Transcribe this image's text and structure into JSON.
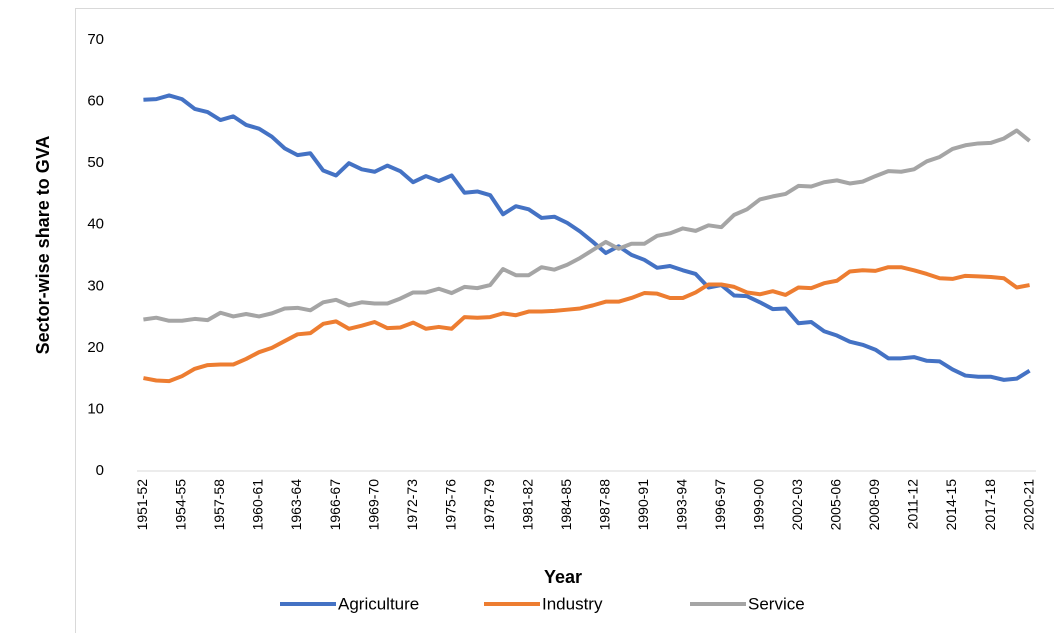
{
  "chart_data": {
    "type": "line",
    "x_label": "Year",
    "y_label": "Sector-wise share to GVA",
    "categories": [
      "1951-52",
      null,
      null,
      "1954-55",
      null,
      null,
      "1957-58",
      null,
      null,
      "1960-61",
      null,
      null,
      "1963-64",
      null,
      null,
      "1966-67",
      null,
      null,
      "1969-70",
      null,
      null,
      "1972-73",
      null,
      null,
      "1975-76",
      null,
      null,
      "1978-79",
      null,
      null,
      "1981-82",
      null,
      null,
      "1984-85",
      null,
      null,
      "1987-88",
      null,
      null,
      "1990-91",
      null,
      null,
      "1993-94",
      null,
      null,
      "1996-97",
      null,
      null,
      "1999-00",
      null,
      null,
      "2002-03",
      null,
      null,
      "2005-06",
      null,
      null,
      "2008-09",
      null,
      null,
      "2011-12",
      null,
      null,
      "2014-15",
      null,
      null,
      "2017-18",
      null,
      null,
      "2020-21"
    ],
    "series": [
      {
        "name": "Agriculture",
        "color": "#4472c4",
        "values": [
          60.3,
          60.4,
          61.0,
          60.4,
          58.8,
          58.3,
          57.0,
          57.6,
          56.2,
          55.6,
          54.3,
          52.4,
          51.3,
          51.6,
          48.8,
          48.0,
          50.0,
          49.0,
          48.6,
          49.6,
          48.7,
          46.9,
          47.9,
          47.1,
          48.0,
          45.2,
          45.4,
          44.8,
          41.7,
          43.0,
          42.5,
          41.1,
          41.3,
          40.3,
          38.9,
          37.2,
          35.4,
          36.5,
          35.1,
          34.3,
          33.0,
          33.3,
          32.6,
          32.0,
          29.8,
          30.2,
          28.5,
          28.4,
          27.4,
          26.3,
          26.4,
          24.0,
          24.2,
          22.7,
          22.0,
          21.0,
          20.5,
          19.7,
          18.3,
          18.3,
          18.5,
          17.9,
          17.8,
          16.5,
          15.5,
          15.3,
          15.3,
          14.8,
          15.0,
          16.3
        ]
      },
      {
        "name": "Industry",
        "color": "#ed7d31",
        "values": [
          15.1,
          14.7,
          14.6,
          15.4,
          16.6,
          17.2,
          17.3,
          17.3,
          18.2,
          19.3,
          20.0,
          21.1,
          22.2,
          22.4,
          23.9,
          24.3,
          23.1,
          23.6,
          24.2,
          23.2,
          23.3,
          24.1,
          23.1,
          23.4,
          23.1,
          25.0,
          24.9,
          25.0,
          25.6,
          25.3,
          25.9,
          25.9,
          26.0,
          26.2,
          26.4,
          26.9,
          27.5,
          27.5,
          28.1,
          28.9,
          28.8,
          28.1,
          28.1,
          29.0,
          30.3,
          30.3,
          29.9,
          29.0,
          28.7,
          29.2,
          28.6,
          29.8,
          29.7,
          30.5,
          30.9,
          32.4,
          32.6,
          32.5,
          33.1,
          33.1,
          32.6,
          32.0,
          31.3,
          31.2,
          31.7,
          31.6,
          31.5,
          31.3,
          29.8,
          30.2
        ]
      },
      {
        "name": "Service",
        "color": "#a5a5a5",
        "values": [
          24.6,
          24.9,
          24.4,
          24.4,
          24.7,
          24.5,
          25.7,
          25.1,
          25.5,
          25.1,
          25.6,
          26.4,
          26.5,
          26.1,
          27.4,
          27.8,
          26.9,
          27.4,
          27.2,
          27.2,
          28.0,
          29.0,
          29.0,
          29.6,
          28.9,
          29.9,
          29.7,
          30.2,
          32.8,
          31.8,
          31.8,
          33.1,
          32.7,
          33.5,
          34.6,
          35.9,
          37.2,
          36.1,
          36.9,
          36.9,
          38.2,
          38.6,
          39.4,
          39.0,
          39.9,
          39.6,
          41.6,
          42.5,
          44.1,
          44.6,
          45.0,
          46.3,
          46.2,
          46.9,
          47.2,
          46.7,
          47.0,
          47.9,
          48.7,
          48.6,
          49.0,
          50.3,
          51.0,
          52.3,
          52.9,
          53.2,
          53.3,
          54.0,
          55.3,
          53.6
        ]
      }
    ],
    "ylim": [
      0,
      70
    ],
    "yticks": [
      0,
      10,
      20,
      30,
      40,
      50,
      60,
      70
    ],
    "grid": false,
    "legend": "bottom"
  }
}
